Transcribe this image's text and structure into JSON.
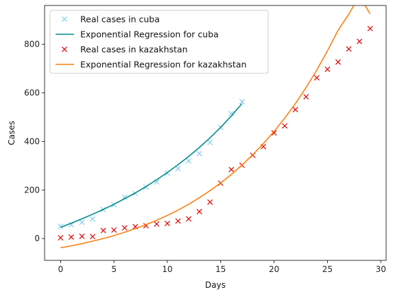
{
  "chart_data": {
    "type": "line",
    "xlabel": "Days",
    "ylabel": "Cases",
    "xlim": [
      -1.5,
      30.5
    ],
    "ylim": [
      -90,
      960
    ],
    "xticks": [
      0,
      5,
      10,
      15,
      20,
      25,
      30
    ],
    "yticks": [
      0,
      200,
      400,
      600,
      800
    ],
    "grid": false,
    "legend_position": "top-left",
    "series": [
      {
        "name": "Real cases in cuba",
        "kind": "scatter",
        "marker": "x",
        "color": "#87ceeb",
        "x": [
          0,
          1,
          2,
          3,
          4,
          5,
          6,
          7,
          8,
          9,
          10,
          11,
          12,
          13,
          14,
          15,
          16,
          17
        ],
        "y": [
          50,
          57,
          67,
          80,
          119,
          139,
          170,
          186,
          212,
          233,
          269,
          288,
          320,
          350,
          396,
          457,
          515,
          564
        ]
      },
      {
        "name": "Exponential Regression for cuba",
        "kind": "line",
        "color": "#008b8b",
        "x": [
          0,
          1,
          2,
          3,
          4,
          5,
          6,
          7,
          8,
          9,
          10,
          11,
          12,
          13,
          14,
          15,
          16,
          17
        ],
        "y": [
          46,
          63,
          81,
          100,
          120,
          141,
          164,
          188,
          214,
          242,
          272,
          304,
          338,
          375,
          415,
          458,
          505,
          556
        ]
      },
      {
        "name": "Real cases in kazakhstan",
        "kind": "scatter",
        "marker": "x",
        "color": "#dd0000",
        "x": [
          0,
          1,
          2,
          3,
          4,
          5,
          6,
          7,
          8,
          9,
          10,
          11,
          12,
          13,
          14,
          15,
          16,
          17,
          18,
          19,
          20,
          21,
          22,
          23,
          24,
          25,
          26,
          27,
          28,
          29
        ],
        "y": [
          3,
          6,
          9,
          8,
          33,
          35,
          44,
          49,
          53,
          60,
          62,
          72,
          81,
          111,
          150,
          228,
          284,
          302,
          343,
          379,
          435,
          464,
          531,
          584,
          662,
          697,
          727,
          781,
          812,
          865
        ]
      },
      {
        "name": "Exponential Regression for kazakhstan",
        "kind": "line",
        "color": "#ff7f0e",
        "x": [
          0,
          1,
          2,
          3,
          4,
          5,
          6,
          7,
          8,
          9,
          10,
          11,
          12,
          13,
          14,
          15,
          16,
          17,
          18,
          19,
          20,
          21,
          22,
          23,
          24,
          25,
          26,
          27,
          28,
          29
        ],
        "y": [
          -38,
          -30,
          -21,
          -11,
          0,
          12,
          26,
          41,
          57,
          75,
          95,
          117,
          141,
          168,
          197,
          229,
          264,
          303,
          345,
          391,
          441,
          496,
          556,
          622,
          694,
          773,
          858,
          924,
          1000,
          925
        ]
      }
    ]
  }
}
